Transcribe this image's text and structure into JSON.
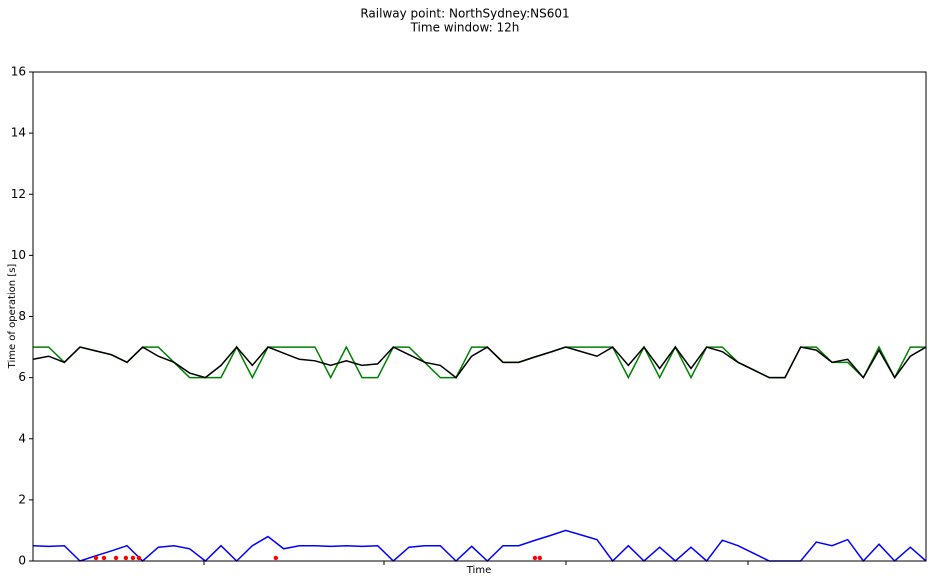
{
  "chart_data": {
    "type": "line",
    "title": "Railway point: NorthSydney:NS601",
    "subtitle": "Time window: 12h",
    "xlabel": "Time",
    "ylabel": "Time of operation [s]",
    "xlim": [
      0,
      57
    ],
    "ylim": [
      0,
      16
    ],
    "yticks": [
      0,
      2,
      4,
      6,
      8,
      10,
      12,
      14,
      16
    ],
    "x": [
      0,
      1,
      2,
      3,
      4,
      5,
      6,
      7,
      8,
      9,
      10,
      11,
      12,
      13,
      14,
      15,
      16,
      17,
      18,
      19,
      20,
      21,
      22,
      23,
      24,
      25,
      26,
      27,
      28,
      29,
      30,
      31,
      32,
      33,
      34,
      35,
      36,
      37,
      38,
      39,
      40,
      41,
      42,
      43,
      44,
      45,
      46,
      47,
      48,
      49,
      50,
      51,
      52,
      53,
      54,
      55,
      56,
      57
    ],
    "series": [
      {
        "color": "#008000",
        "values": [
          7,
          7,
          6.5,
          7,
          6.875,
          6.75,
          6.5,
          7,
          7,
          6.5,
          6,
          6,
          6,
          7,
          6,
          7,
          7,
          7,
          7,
          6,
          7,
          6,
          6,
          7,
          7,
          6.5,
          6,
          6,
          7,
          7,
          6.5,
          6.5,
          6.67,
          6.83,
          7,
          7,
          7,
          7,
          6,
          7,
          6,
          7,
          6,
          7,
          7,
          6.5,
          6.25,
          6,
          6,
          7,
          7,
          6.5,
          6.5,
          6,
          7,
          6,
          7,
          7
        ]
      },
      {
        "color": "#000000",
        "values": [
          6.6,
          6.7,
          6.5,
          7,
          6.875,
          6.75,
          6.5,
          7,
          6.7,
          6.5,
          6.15,
          6,
          6.4,
          7,
          6.4,
          7,
          6.8,
          6.6,
          6.55,
          6.4,
          6.55,
          6.4,
          6.45,
          7,
          6.75,
          6.5,
          6.4,
          6,
          6.7,
          7,
          6.5,
          6.5,
          6.67,
          6.83,
          7,
          6.85,
          6.7,
          7,
          6.4,
          7,
          6.3,
          7,
          6.3,
          7,
          6.85,
          6.5,
          6.25,
          6,
          6,
          7,
          6.9,
          6.5,
          6.6,
          6,
          6.9,
          6,
          6.7,
          7
        ]
      },
      {
        "color": "#0000ff",
        "values": [
          0.5,
          0.48,
          0.5,
          0,
          0.17,
          0.33,
          0.5,
          0,
          0.45,
          0.5,
          0.4,
          0,
          0.5,
          0,
          0.5,
          0.8,
          0.4,
          0.5,
          0.5,
          0.48,
          0.5,
          0.48,
          0.5,
          0,
          0.45,
          0.5,
          0.5,
          0,
          0.48,
          0,
          0.5,
          0.5,
          0.67,
          0.83,
          1,
          0.85,
          0.7,
          0,
          0.5,
          0,
          0.45,
          0,
          0.45,
          0,
          0.68,
          0.5,
          0.25,
          0,
          0,
          0,
          0.62,
          0.5,
          0.7,
          0,
          0.55,
          0,
          0.45,
          0
        ]
      }
    ],
    "points": {
      "color": "#ff0000",
      "x": [
        4.02,
        4.53,
        5.3,
        5.93,
        6.38,
        6.76,
        15.5,
        32.04,
        32.35
      ],
      "values": [
        0.1,
        0.1,
        0.1,
        0.1,
        0.1,
        0.1,
        0.1,
        0.1,
        0.1
      ]
    }
  }
}
